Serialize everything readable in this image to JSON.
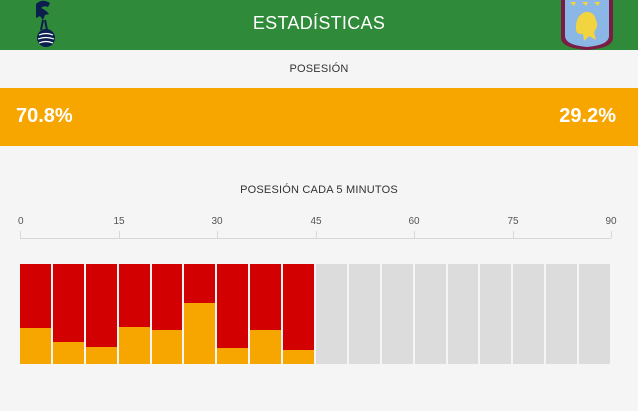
{
  "header": {
    "title": "ESTADÍSTICAS",
    "home_crest": "tottenham-crest",
    "away_crest": "aston-villa-crest"
  },
  "possession": {
    "title": "POSESIÓN",
    "home_value": "70.8%",
    "away_value": "29.2%",
    "home_color": "#f7a600",
    "away_color": "#d20000"
  },
  "timeline": {
    "title": "POSESIÓN CADA 5 MINUTOS",
    "ticks": [
      "0",
      "15",
      "30",
      "45",
      "60",
      "75",
      "90"
    ],
    "empty_color": "#dcdcdc"
  },
  "chart_data": {
    "type": "bar",
    "stacked": true,
    "x_range": [
      0,
      90
    ],
    "interval_minutes": 5,
    "intervals": 18,
    "series": [
      {
        "color": "#f7a600",
        "values": [
          0.36,
          0.22,
          0.17,
          0.37,
          0.34,
          0.61,
          0.16,
          0.34,
          0.14
        ]
      },
      {
        "color": "#d20000",
        "values": [
          0.64,
          0.78,
          0.83,
          0.63,
          0.66,
          0.39,
          0.84,
          0.66,
          0.86
        ]
      }
    ]
  }
}
